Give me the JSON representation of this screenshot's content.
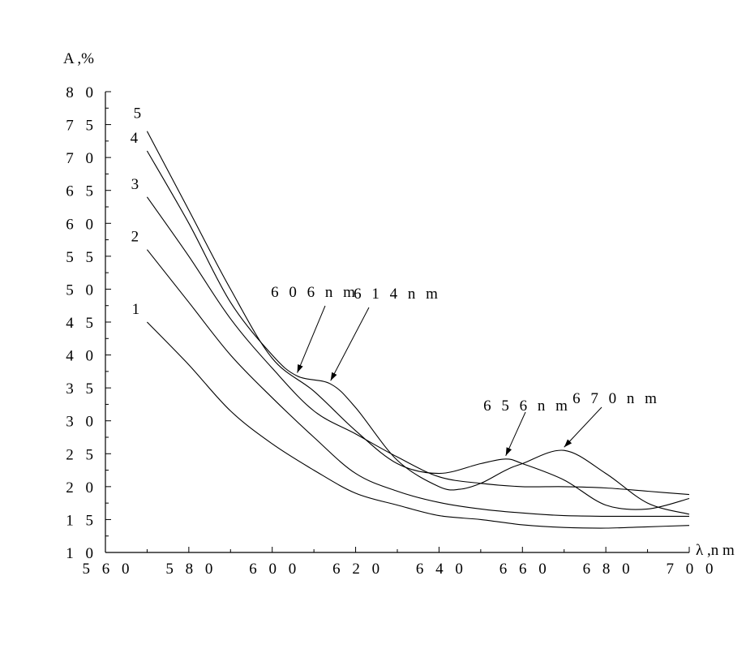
{
  "chart_data": {
    "type": "line",
    "title": "",
    "xlabel": "λ ,n m",
    "ylabel": "A ,%",
    "xlim": [
      560,
      700
    ],
    "ylim": [
      10,
      80
    ],
    "x_ticks": [
      560,
      580,
      600,
      620,
      640,
      660,
      680,
      700
    ],
    "x_tick_labels": [
      "5 6 0",
      "5 8 0",
      "6 0 0",
      "6 2 0",
      "6 4 0",
      "6 6 0",
      "6 8 0",
      "7 0 0"
    ],
    "y_ticks": [
      10,
      15,
      20,
      25,
      30,
      35,
      40,
      45,
      50,
      55,
      60,
      65,
      70,
      75,
      80
    ],
    "y_tick_labels": [
      "1 0",
      "1 5",
      "2 0",
      "2 5",
      "3 0",
      "3 5",
      "4 0",
      "4 5",
      "5 0",
      "5 5",
      "6 0",
      "6 5",
      "7 0",
      "7 5",
      "8 0"
    ],
    "grid": false,
    "legend": "none",
    "series": [
      {
        "name": "1",
        "x": [
          570,
          580,
          590,
          600,
          610,
          620,
          630,
          640,
          650,
          660,
          670,
          680,
          690,
          700
        ],
        "y": [
          45.0,
          38.5,
          31.5,
          26.5,
          22.5,
          19.0,
          17.2,
          15.6,
          15.0,
          14.2,
          13.8,
          13.7,
          13.9,
          14.1
        ]
      },
      {
        "name": "2",
        "x": [
          570,
          580,
          590,
          600,
          610,
          620,
          630,
          640,
          650,
          660,
          670,
          680,
          690,
          700
        ],
        "y": [
          56.0,
          48.0,
          40.0,
          33.5,
          27.5,
          22.0,
          19.3,
          17.6,
          16.6,
          16.0,
          15.6,
          15.5,
          15.5,
          15.5
        ]
      },
      {
        "name": "3",
        "x": [
          570,
          580,
          590,
          600,
          610,
          620,
          630,
          640,
          650,
          660,
          670,
          680,
          690,
          700
        ],
        "y": [
          64.0,
          55.0,
          45.5,
          38.0,
          31.5,
          28.0,
          24.5,
          21.5,
          20.5,
          20.0,
          20.0,
          19.8,
          19.3,
          18.8
        ]
      },
      {
        "name": "4",
        "x": [
          570,
          580,
          590,
          600,
          606,
          614,
          620,
          630,
          640,
          645,
          650,
          656,
          660,
          670,
          680,
          690,
          700
        ],
        "y": [
          71.0,
          60.0,
          48.0,
          40.0,
          36.8,
          35.6,
          32.0,
          24.0,
          20.0,
          19.6,
          20.5,
          22.5,
          23.5,
          25.5,
          22.0,
          17.5,
          15.8
        ]
      },
      {
        "name": "5",
        "x": [
          570,
          580,
          590,
          600,
          610,
          620,
          630,
          640,
          650,
          656,
          660,
          670,
          680,
          690,
          700
        ],
        "y": [
          74.0,
          62.0,
          50.0,
          39.5,
          34.5,
          28.5,
          23.5,
          22.0,
          23.5,
          24.2,
          23.5,
          21.0,
          17.2,
          16.6,
          18.2
        ]
      }
    ],
    "curve_labels": [
      "1",
      "2",
      "3",
      "4",
      "5"
    ],
    "annotations": [
      {
        "text": "6 0 6 n m",
        "x": 606,
        "y": 36.8
      },
      {
        "text": "6 1 4 n m",
        "x": 614,
        "y": 35.6
      },
      {
        "text": "6 5 6 n m",
        "x": 656,
        "y": 24.2
      },
      {
        "text": "6 7 0 n m",
        "x": 670,
        "y": 25.5
      }
    ]
  }
}
